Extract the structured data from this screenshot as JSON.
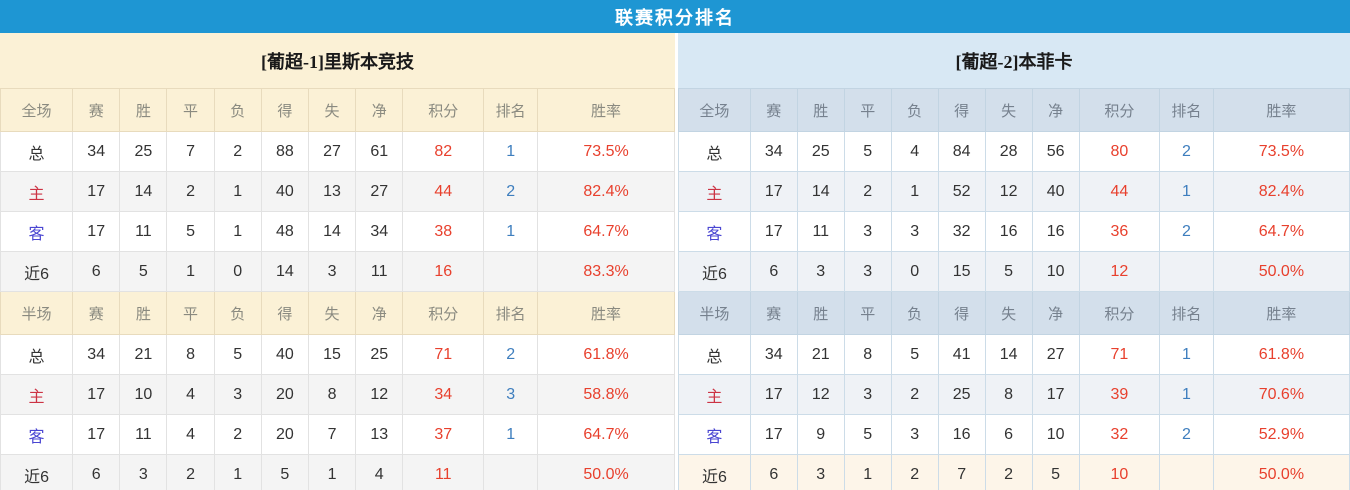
{
  "title": "联赛积分排名",
  "colors": {
    "accent": "#1e96d3",
    "cream_bg": "#fbf1d6",
    "blue_bg": "#d8e8f4",
    "blue_head_bg": "#d3dfeb",
    "stat_red": "#e8402d",
    "rank_blue": "#3e7ebe",
    "home_red": "#cc3344",
    "away_blue": "#4a46d2",
    "stripe_left": "#f4f4f4",
    "stripe_right": "#eff2f6",
    "highlight_bg": "#fdf5e9"
  },
  "tables": [
    {
      "team_title": "[葡超-1]里斯本竞技",
      "theme": "cream",
      "sections": [
        {
          "scope_label": "全场",
          "columns": [
            "赛",
            "胜",
            "平",
            "负",
            "得",
            "失",
            "净",
            "积分",
            "排名",
            "胜率"
          ],
          "rows": [
            {
              "label": "总",
              "type": "total",
              "cells": [
                "34",
                "25",
                "7",
                "2",
                "88",
                "27",
                "61",
                "82",
                "1",
                "73.5%"
              ]
            },
            {
              "label": "主",
              "type": "home",
              "cells": [
                "17",
                "14",
                "2",
                "1",
                "40",
                "13",
                "27",
                "44",
                "2",
                "82.4%"
              ]
            },
            {
              "label": "客",
              "type": "away",
              "cells": [
                "17",
                "11",
                "5",
                "1",
                "48",
                "14",
                "34",
                "38",
                "1",
                "64.7%"
              ]
            },
            {
              "label": "近6",
              "type": "recent",
              "cells": [
                "6",
                "5",
                "1",
                "0",
                "14",
                "3",
                "11",
                "16",
                "",
                "83.3%"
              ]
            }
          ]
        },
        {
          "scope_label": "半场",
          "columns": [
            "赛",
            "胜",
            "平",
            "负",
            "得",
            "失",
            "净",
            "积分",
            "排名",
            "胜率"
          ],
          "rows": [
            {
              "label": "总",
              "type": "total",
              "cells": [
                "34",
                "21",
                "8",
                "5",
                "40",
                "15",
                "25",
                "71",
                "2",
                "61.8%"
              ]
            },
            {
              "label": "主",
              "type": "home",
              "cells": [
                "17",
                "10",
                "4",
                "3",
                "20",
                "8",
                "12",
                "34",
                "3",
                "58.8%"
              ]
            },
            {
              "label": "客",
              "type": "away",
              "cells": [
                "17",
                "11",
                "4",
                "2",
                "20",
                "7",
                "13",
                "37",
                "1",
                "64.7%"
              ]
            },
            {
              "label": "近6",
              "type": "recent",
              "cells": [
                "6",
                "3",
                "2",
                "1",
                "5",
                "1",
                "4",
                "11",
                "",
                "50.0%"
              ]
            }
          ]
        }
      ]
    },
    {
      "team_title": "[葡超-2]本菲卡",
      "theme": "blue",
      "sections": [
        {
          "scope_label": "全场",
          "columns": [
            "赛",
            "胜",
            "平",
            "负",
            "得",
            "失",
            "净",
            "积分",
            "排名",
            "胜率"
          ],
          "rows": [
            {
              "label": "总",
              "type": "total",
              "cells": [
                "34",
                "25",
                "5",
                "4",
                "84",
                "28",
                "56",
                "80",
                "2",
                "73.5%"
              ]
            },
            {
              "label": "主",
              "type": "home",
              "cells": [
                "17",
                "14",
                "2",
                "1",
                "52",
                "12",
                "40",
                "44",
                "1",
                "82.4%"
              ]
            },
            {
              "label": "客",
              "type": "away",
              "cells": [
                "17",
                "11",
                "3",
                "3",
                "32",
                "16",
                "16",
                "36",
                "2",
                "64.7%"
              ]
            },
            {
              "label": "近6",
              "type": "recent",
              "cells": [
                "6",
                "3",
                "3",
                "0",
                "15",
                "5",
                "10",
                "12",
                "",
                "50.0%"
              ]
            }
          ]
        },
        {
          "scope_label": "半场",
          "columns": [
            "赛",
            "胜",
            "平",
            "负",
            "得",
            "失",
            "净",
            "积分",
            "排名",
            "胜率"
          ],
          "rows": [
            {
              "label": "总",
              "type": "total",
              "cells": [
                "34",
                "21",
                "8",
                "5",
                "41",
                "14",
                "27",
                "71",
                "1",
                "61.8%"
              ]
            },
            {
              "label": "主",
              "type": "home",
              "cells": [
                "17",
                "12",
                "3",
                "2",
                "25",
                "8",
                "17",
                "39",
                "1",
                "70.6%"
              ]
            },
            {
              "label": "客",
              "type": "away",
              "cells": [
                "17",
                "9",
                "5",
                "3",
                "16",
                "6",
                "10",
                "32",
                "2",
                "52.9%"
              ]
            },
            {
              "label": "近6",
              "type": "recent",
              "cells": [
                "6",
                "3",
                "1",
                "2",
                "7",
                "2",
                "5",
                "10",
                "",
                "50.0%"
              ],
              "highlight": true
            }
          ]
        }
      ]
    }
  ]
}
